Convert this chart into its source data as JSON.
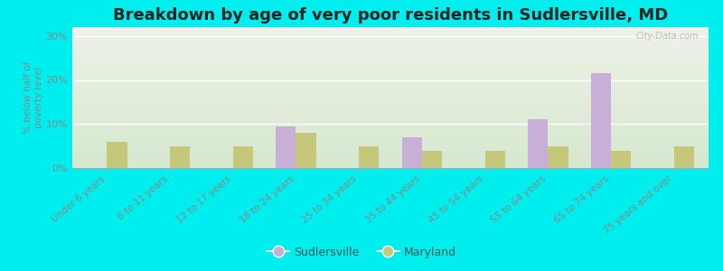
{
  "title": "Breakdown by age of very poor residents in Sudlersville, MD",
  "ylabel": "% below half of\npoverty level",
  "categories": [
    "Under 6 years",
    "6 to 11 years",
    "12 to 17 years",
    "18 to 24 years",
    "25 to 34 years",
    "35 to 44 years",
    "45 to 54 years",
    "55 to 64 years",
    "65 to 74 years",
    "75 years and over"
  ],
  "sudlersville": [
    0,
    0,
    0,
    9.5,
    0,
    7.0,
    0,
    11.0,
    21.5,
    0
  ],
  "maryland": [
    6.0,
    5.0,
    5.0,
    8.0,
    5.0,
    4.0,
    4.0,
    5.0,
    4.0,
    5.0
  ],
  "sudlersville_color": "#c9aed8",
  "maryland_color": "#c5c87a",
  "background_outer": "#00eeee",
  "background_plot_top": "#d6e8d0",
  "background_plot_bottom": "#eef2e8",
  "ylim": [
    0,
    32
  ],
  "yticks": [
    0,
    10,
    20,
    30
  ],
  "ytick_labels": [
    "0%",
    "10%",
    "20%",
    "30%"
  ],
  "bar_width": 0.32,
  "title_fontsize": 13,
  "legend_labels": [
    "Sudlersville",
    "Maryland"
  ],
  "watermark": "City-Data.com",
  "grid_color": "#ffffff",
  "tick_label_color": "#888888",
  "ylabel_color": "#888888"
}
